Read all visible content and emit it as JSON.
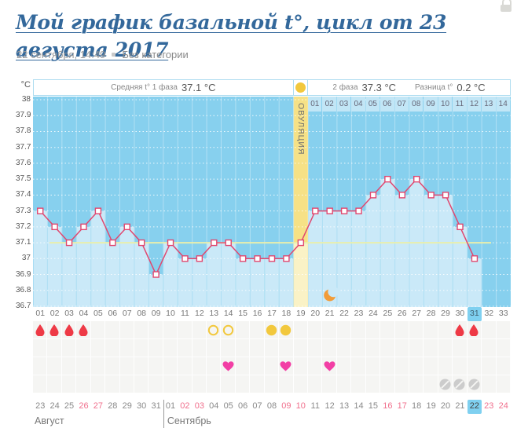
{
  "page": {
    "title": "Мой график базальной t°, цикл от 23 августа 2017",
    "meta_date": "22 сентября, 14:49",
    "meta_category": "Без категории"
  },
  "header": {
    "unit": "°C",
    "phase1_label": "Средняя t° 1 фаза",
    "phase1_value": "37.1 °C",
    "phase2_label": "2 фаза",
    "phase2_value": "37.3 °C",
    "diff_label": "Разница t°",
    "diff_value": "0.2 °C",
    "ovulation_label": "ОВУЛЯЦИЯ"
  },
  "chart_data": {
    "type": "line",
    "ylabel": "°C",
    "ylim": [
      36.7,
      38
    ],
    "ytick_step": 0.1,
    "yticks": [
      "38",
      "37.9",
      "37.8",
      "37.7",
      "37.6",
      "37.5",
      "37.4",
      "37.3",
      "37.2",
      "37.1",
      "37",
      "36.9",
      "36.8",
      "36.7"
    ],
    "x_days": [
      "01",
      "02",
      "03",
      "04",
      "05",
      "06",
      "07",
      "08",
      "09",
      "10",
      "11",
      "12",
      "13",
      "14",
      "15",
      "16",
      "17",
      "18",
      "19",
      "20",
      "21",
      "22",
      "23",
      "24",
      "25",
      "26",
      "27",
      "28",
      "29",
      "30",
      "31",
      "32",
      "33"
    ],
    "temperatures": [
      37.3,
      37.2,
      37.1,
      37.2,
      37.3,
      37.1,
      37.2,
      37.1,
      36.9,
      37.1,
      37.0,
      37.0,
      37.1,
      37.1,
      37.0,
      37.0,
      37.0,
      37.0,
      37.1,
      37.3,
      37.3,
      37.3,
      37.3,
      37.4,
      37.5,
      37.4,
      37.5,
      37.4,
      37.4,
      37.2,
      37.0,
      null,
      null
    ],
    "phase1_average": 37.1,
    "phase2_average": 37.3,
    "temperature_difference": 0.2,
    "coverline": 37.1,
    "ovulation_day": 19,
    "phase2_day_labels": [
      "01",
      "02",
      "03",
      "04",
      "05",
      "06",
      "07",
      "08",
      "09",
      "10",
      "11",
      "12",
      "13",
      "14"
    ],
    "phase2_start_day": 20,
    "highlighted_x_day": "31",
    "moon_day": 21,
    "grid": true,
    "events": {
      "menstruation_days": [
        1,
        2,
        3,
        4,
        30,
        31
      ],
      "ovulation_test_negative_days": [
        13,
        14
      ],
      "ovulation_test_positive_days": [
        17,
        18
      ],
      "intercourse_days": [
        14,
        18,
        21
      ],
      "disturbance_days": [
        29,
        30,
        31
      ]
    }
  },
  "calendar": {
    "months": [
      {
        "label": "Август",
        "days": [
          "23",
          "24",
          "25",
          "26",
          "27",
          "28",
          "29",
          "30",
          "31"
        ],
        "weekend_days": [
          "26",
          "27"
        ],
        "today": ""
      },
      {
        "label": "Сентябрь",
        "days": [
          "01",
          "02",
          "03",
          "04",
          "05",
          "06",
          "07",
          "08",
          "09",
          "10",
          "11",
          "12",
          "13",
          "14",
          "15",
          "16",
          "17",
          "18",
          "19",
          "20",
          "21",
          "22",
          "23",
          "24"
        ],
        "weekend_days": [
          "02",
          "03",
          "09",
          "10",
          "16",
          "17",
          "23",
          "24"
        ],
        "today": "22"
      }
    ]
  },
  "colors": {
    "title": "#33689b",
    "plot_background": "#87d0ee",
    "plot_fill": "#cae9f8",
    "ovulation_band": "#f6e186",
    "ovulation_band_fill": "#faf2c6",
    "temperature_line": "#e1476f",
    "coverline": "#e9efad",
    "phase2_strip_cell": "#c2e6f6",
    "highlight_day": "#7fd0f0",
    "weekend_date": "#f0708d",
    "menstruation": "#ee3a46",
    "ovulation_test": "#f2c83d",
    "intercourse": "#f23fa5",
    "disturbance": "#cccccc",
    "moon": "#f29c38",
    "header_border": "#addcf0"
  }
}
